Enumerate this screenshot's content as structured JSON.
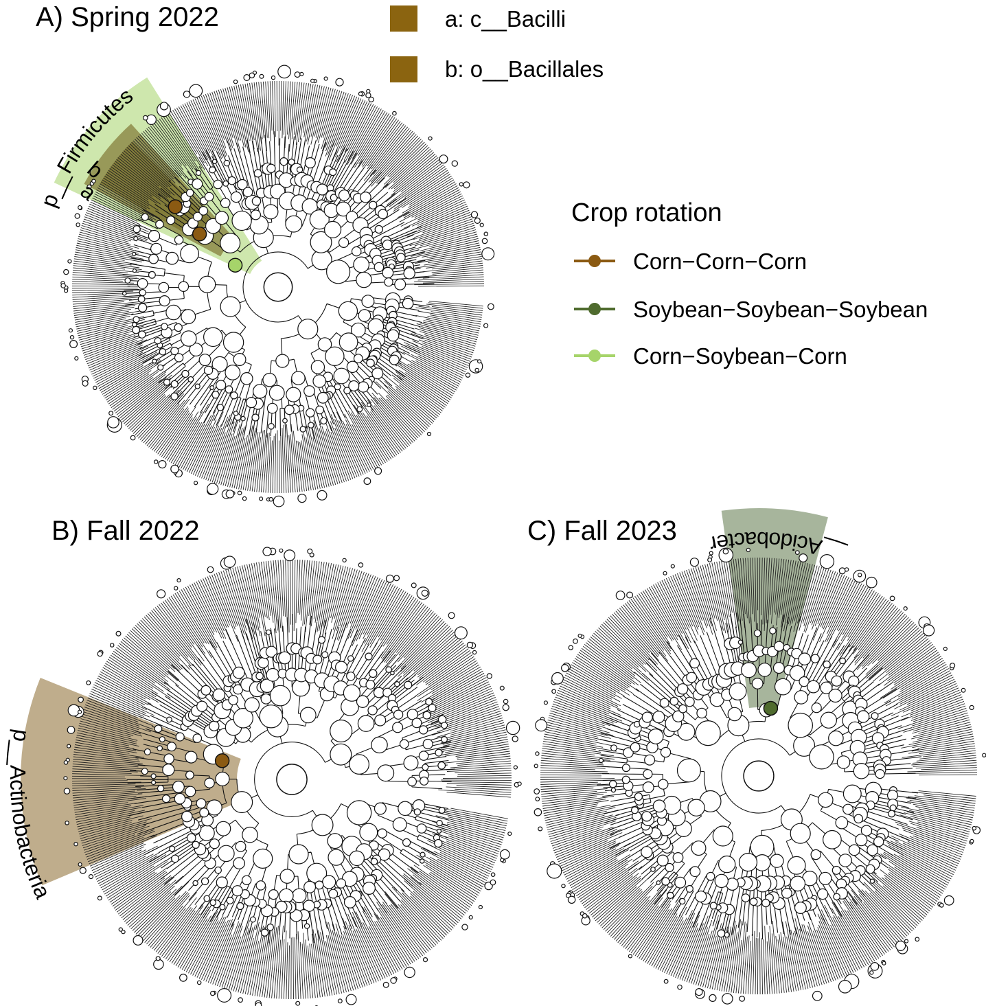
{
  "panels": {
    "a": {
      "title": "A) Spring 2022",
      "clade_label": "p__Firmicutes",
      "marker_a": "a",
      "marker_b": "b"
    },
    "b": {
      "title": "B) Fall 2022",
      "clade_label": "p__Actinobacteria"
    },
    "c": {
      "title": "C) Fall 2023",
      "clade_label": "p__Acidobacteria"
    }
  },
  "clade_key": [
    {
      "label": "a: c__Bacilli",
      "color": "#8B6410"
    },
    {
      "label": "b: o__Bacillales",
      "color": "#8B6410"
    }
  ],
  "legend": {
    "title": "Crop rotation",
    "items": [
      {
        "label": "Corn−Corn−Corn",
        "color": "#8B5A12"
      },
      {
        "label": "Soybean−Soybean−Soybean",
        "color": "#4F6B2E"
      },
      {
        "label": "Corn−Soybean−Corn",
        "color": "#A6D46A"
      }
    ]
  },
  "colors": {
    "firmicutes_highlight": "#A6D46A",
    "bacilli_highlight": "#6B5A14",
    "actinobacteria_highlight": "#8B6A2E",
    "acidobacteria_highlight": "#4F6B3A"
  }
}
